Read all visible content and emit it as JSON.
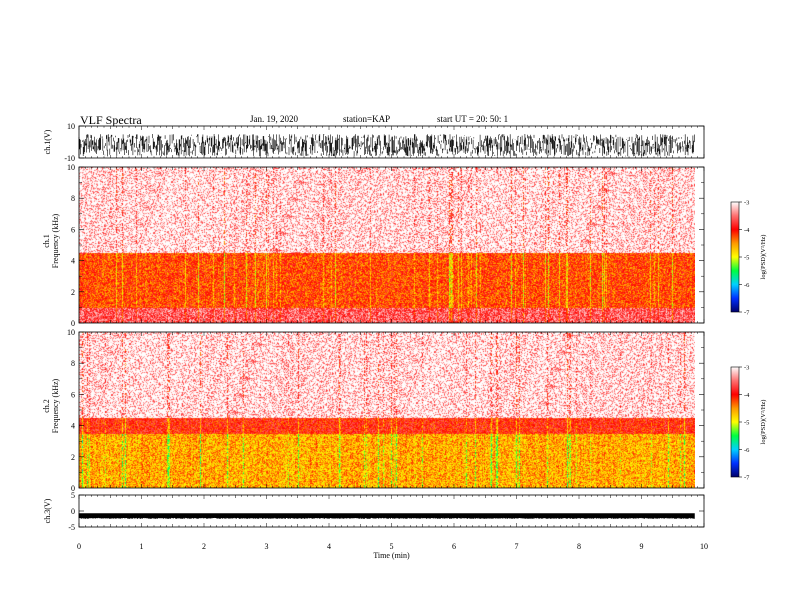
{
  "header": {
    "title": "VLF Spectra",
    "date": "Jan. 19, 2020",
    "station": "station=KAP",
    "start": "start  UT =   20: 50: 1"
  },
  "chart_data": [
    {
      "type": "line",
      "panel": "ch1-waveform",
      "ylabel": "ch.1(V)",
      "yticks": [
        "10",
        "-10"
      ],
      "ylim": [
        -10,
        10
      ],
      "xlim": [
        0,
        10
      ],
      "data_extent_min": 9.85
    },
    {
      "type": "heatmap",
      "panel": "ch1-spectrogram",
      "ylabel_lines": [
        "ch.1",
        "Frequency  (kHz)"
      ],
      "yticks": [
        "0",
        "2",
        "4",
        "6",
        "8",
        "10"
      ],
      "ylim": [
        0,
        10
      ],
      "xlim": [
        0,
        10
      ],
      "colorbar": {
        "label": "log(PSD)(V²/Hz)",
        "ticks": [
          "-3",
          "-4",
          "-5",
          "-6",
          "-7"
        ],
        "range": [
          -7,
          -3
        ]
      },
      "bands": [
        {
          "from": 0,
          "to": 1.0,
          "level": -3.6
        },
        {
          "from": 1.0,
          "to": 4.5,
          "level": -4.2
        },
        {
          "from": 4.5,
          "to": 10,
          "level": -3.3
        }
      ]
    },
    {
      "type": "heatmap",
      "panel": "ch2-spectrogram",
      "ylabel_lines": [
        "ch.2",
        "Frequency  (kHz)"
      ],
      "yticks": [
        "0",
        "2",
        "4",
        "6",
        "8",
        "10"
      ],
      "ylim": [
        0,
        10
      ],
      "xlim": [
        0,
        10
      ],
      "colorbar": {
        "label": "log(PSD)(V²/Hz)",
        "ticks": [
          "-3",
          "-4",
          "-5",
          "-6",
          "-7"
        ],
        "range": [
          -7,
          -3
        ]
      },
      "bands": [
        {
          "from": 0,
          "to": 3.5,
          "level": -4.6
        },
        {
          "from": 3.5,
          "to": 4.5,
          "level": -4.0
        },
        {
          "from": 4.5,
          "to": 10,
          "level": -3.3
        }
      ]
    },
    {
      "type": "line",
      "panel": "ch3-waveform",
      "ylabel": "ch.3(V)",
      "yticks": [
        "5",
        "0",
        "-5"
      ],
      "ylim": [
        -5,
        5
      ],
      "xlim": [
        0,
        10
      ],
      "data_extent_min": 9.85
    }
  ],
  "xaxis": {
    "label": "Time  (min)",
    "ticks": [
      "0",
      "1",
      "2",
      "3",
      "4",
      "5",
      "6",
      "7",
      "8",
      "9",
      "10"
    ]
  },
  "colors": {
    "ink": "#000000",
    "colormap": [
      "#00006a",
      "#0030ff",
      "#00d0ff",
      "#00ff40",
      "#ffff00",
      "#ff9900",
      "#ff0000",
      "#ff7070",
      "#ffffff"
    ]
  }
}
